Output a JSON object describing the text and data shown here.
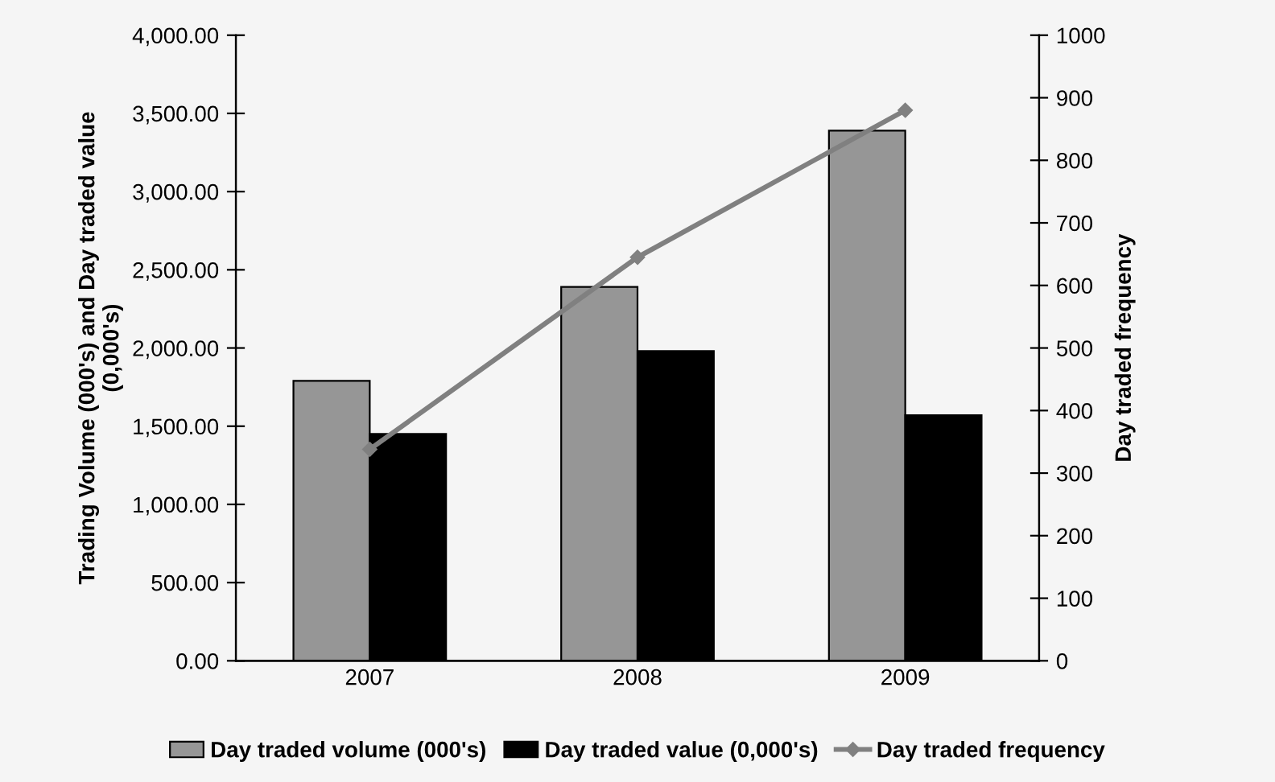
{
  "chart_data": {
    "type": "bar",
    "categories": [
      "2007",
      "2008",
      "2009"
    ],
    "ylabel": "Trading Volume (000's) and Day traded value\n(0,000's)",
    "y2label": "Day traded frequency",
    "ylim": [
      0,
      4000
    ],
    "yticks": [
      {
        "value": 0,
        "label": "0.00"
      },
      {
        "value": 500,
        "label": "500.00"
      },
      {
        "value": 1000,
        "label": "1,000.00"
      },
      {
        "value": 1500,
        "label": "1,500.00"
      },
      {
        "value": 2000,
        "label": "2,000.00"
      },
      {
        "value": 2500,
        "label": "2,500.00"
      },
      {
        "value": 3000,
        "label": "3,000.00"
      },
      {
        "value": 3500,
        "label": "3,500.00"
      },
      {
        "value": 4000,
        "label": "4,000.00"
      }
    ],
    "y2lim": [
      0,
      1000
    ],
    "y2ticks": [
      0,
      100,
      200,
      300,
      400,
      500,
      600,
      700,
      800,
      900,
      1000
    ],
    "series": [
      {
        "name": "Day traded volume (000's)",
        "color": "#969696",
        "values": [
          1790,
          2390,
          3390
        ]
      },
      {
        "name": "Day traded value (0,000's)",
        "color": "#000000",
        "values": [
          1450,
          1980,
          1570
        ]
      },
      {
        "name": "Day traded frequency",
        "color": "#808080",
        "type": "line",
        "axis": "y2",
        "values": [
          338,
          645,
          880
        ]
      }
    ],
    "marker": "diamond",
    "legend": "bottom",
    "grid": false
  }
}
